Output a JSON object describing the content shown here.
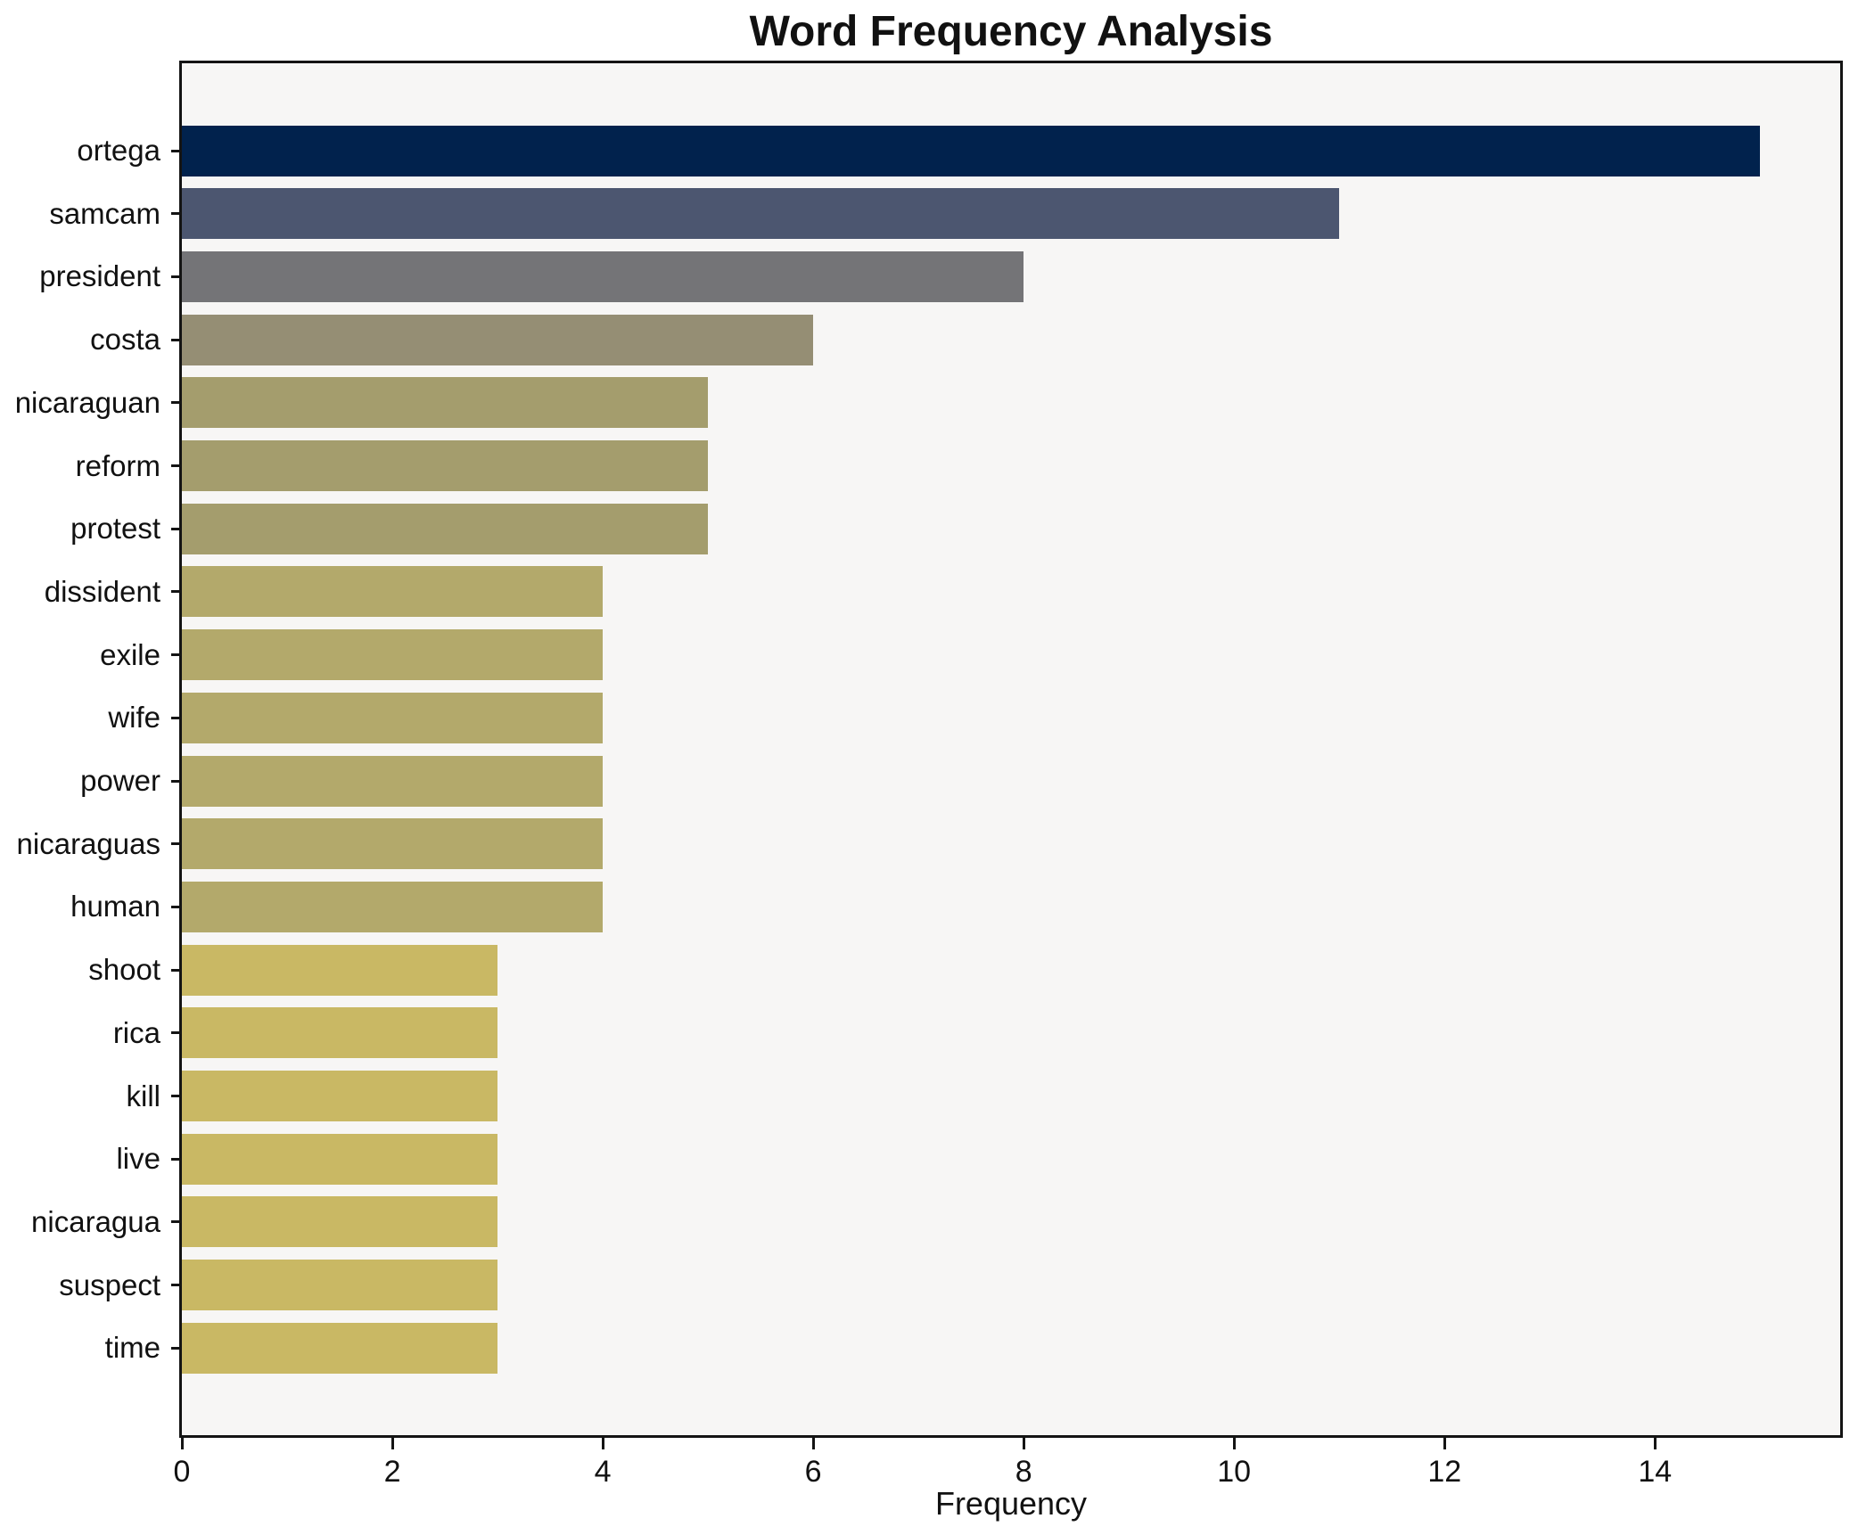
{
  "page": {
    "background": "#ffffff"
  },
  "chart_data": {
    "type": "bar",
    "orientation": "horizontal",
    "title": "Word Frequency Analysis",
    "xlabel": "Frequency",
    "ylabel": "",
    "categories": [
      "ortega",
      "samcam",
      "president",
      "costa",
      "nicaraguan",
      "reform",
      "protest",
      "dissident",
      "exile",
      "wife",
      "power",
      "nicaraguas",
      "human",
      "shoot",
      "rica",
      "kill",
      "live",
      "nicaragua",
      "suspect",
      "time"
    ],
    "values": [
      15,
      11,
      8,
      6,
      5,
      5,
      5,
      4,
      4,
      4,
      4,
      4,
      4,
      3,
      3,
      3,
      3,
      3,
      3,
      3
    ],
    "bar_colors": [
      "#01224d",
      "#4c5670",
      "#747477",
      "#958e74",
      "#a49d6d",
      "#a49d6d",
      "#a49d6d",
      "#b3a96b",
      "#b3a96b",
      "#b3a96b",
      "#b3a96b",
      "#b3a96b",
      "#b3a96b",
      "#c9b864",
      "#c9b864",
      "#c9b864",
      "#c9b864",
      "#c9b864",
      "#c9b864",
      "#c9b864"
    ],
    "xlim": [
      0,
      15.76
    ],
    "xticks": [
      0,
      2,
      4,
      6,
      8,
      10,
      12,
      14
    ],
    "grid": false,
    "legend_position": "none",
    "plot_background": "#f7f6f5",
    "spine_color": "#141414",
    "text_color": "#111111"
  }
}
